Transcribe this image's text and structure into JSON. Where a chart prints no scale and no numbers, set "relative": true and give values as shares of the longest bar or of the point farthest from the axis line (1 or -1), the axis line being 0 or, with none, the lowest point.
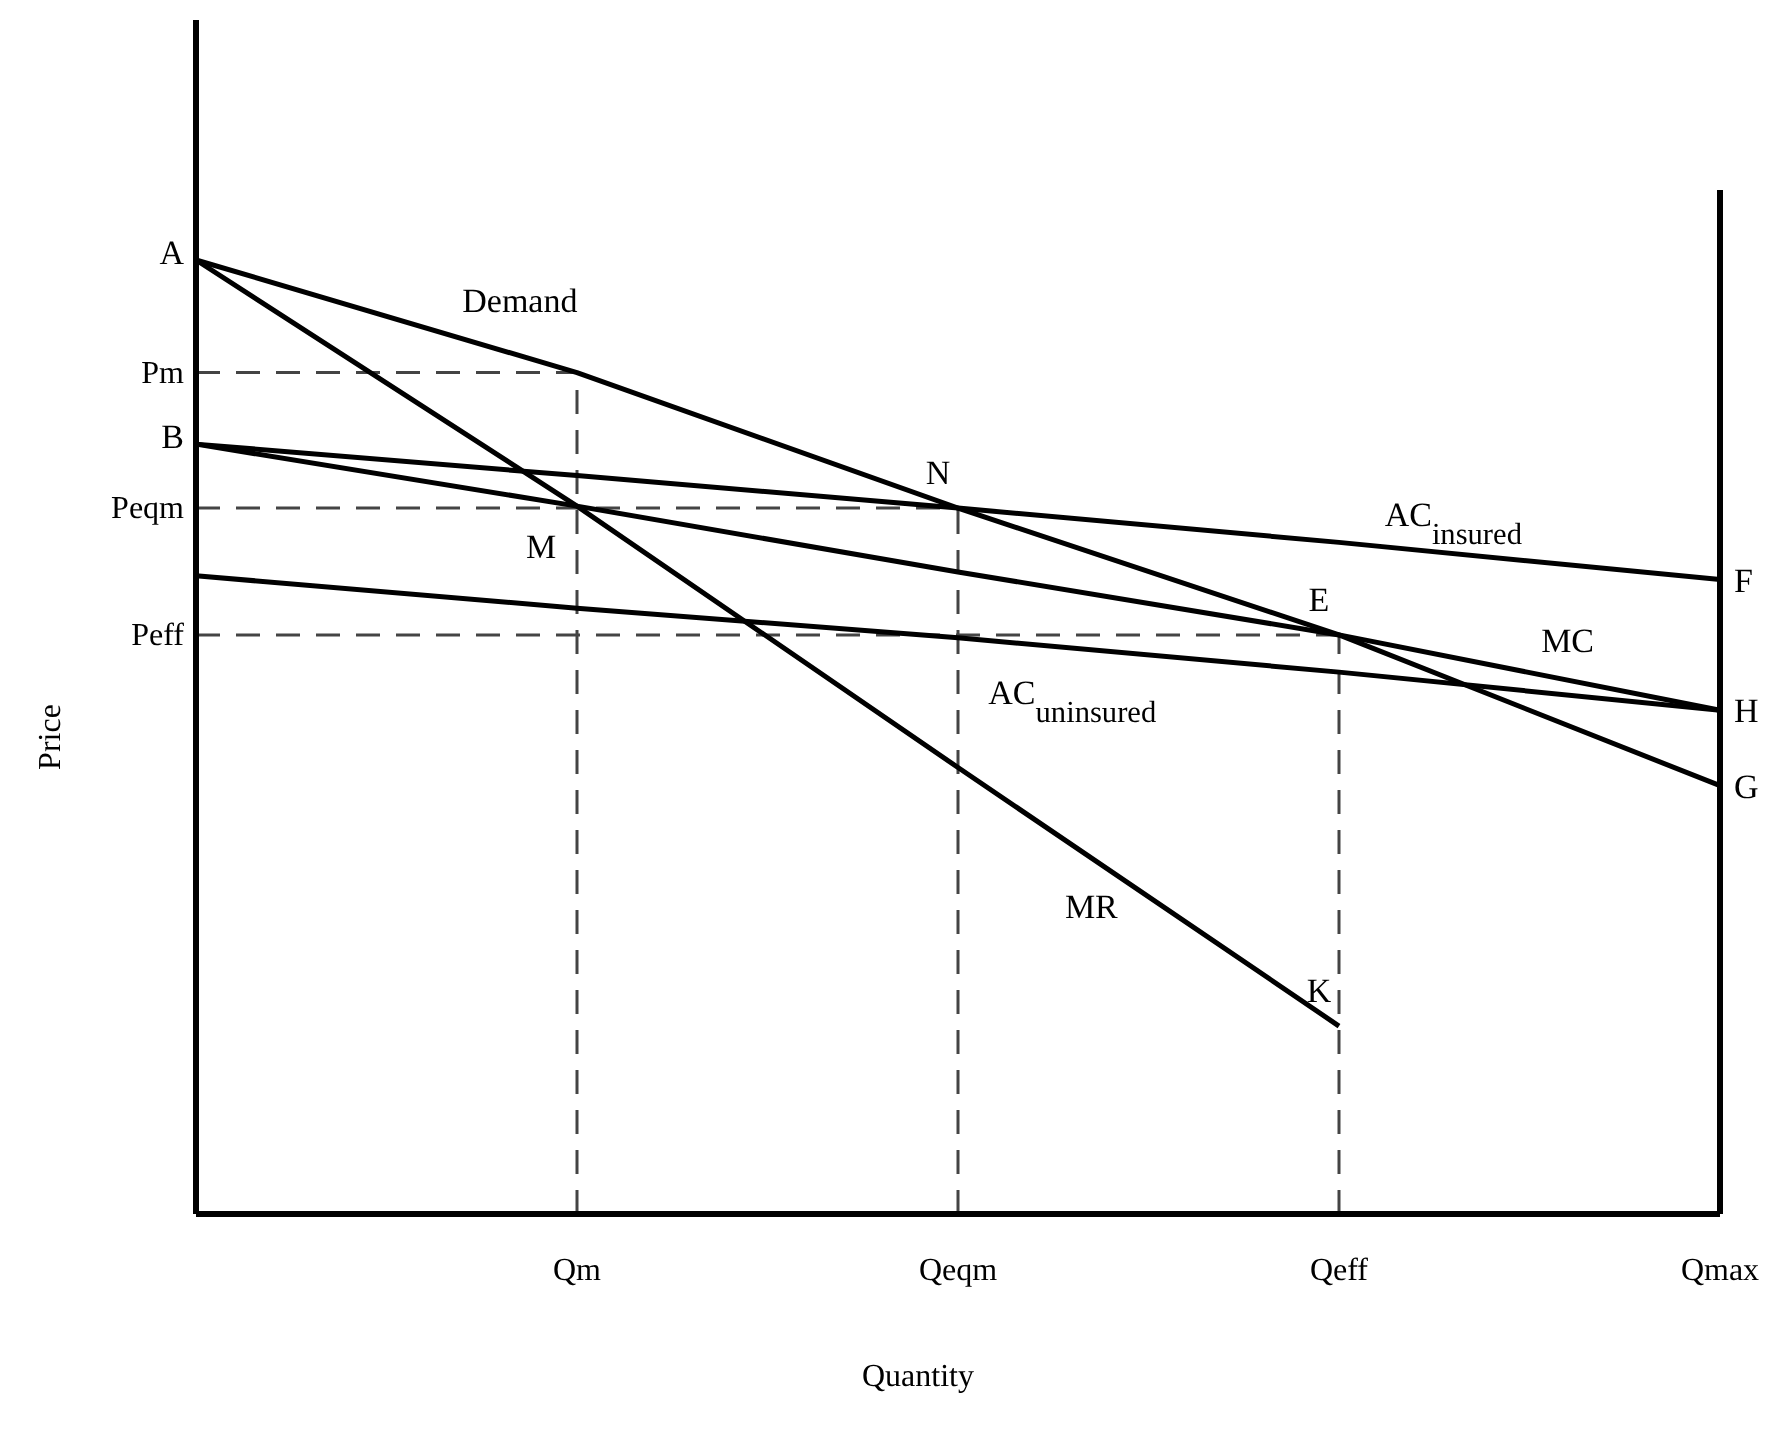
{
  "chart_data": {
    "type": "line",
    "relative": true,
    "xlabel": "Quantity",
    "ylabel": "Price",
    "categories": [
      null,
      "Qm",
      "Qeqm",
      "Qeff",
      "Qmax"
    ],
    "series": [
      {
        "name": "Demand",
        "color": "#000000",
        "values": [
          1,
          0.882,
          0.74,
          0.607,
          0.449
        ]
      },
      {
        "name": "MR",
        "color": "#000000",
        "values": [
          1,
          0.742,
          0.468,
          0.197,
          null
        ]
      },
      {
        "name": "AC$_{insured}$",
        "color": "#000000",
        "values": [
          0.807,
          0.774,
          0.74,
          0.704,
          0.665
        ]
      },
      {
        "name": "MC",
        "color": "#000000",
        "values": [
          0.807,
          0.742,
          0.673,
          0.607,
          0.528
        ]
      },
      {
        "name": "AC$_{uninsured}$",
        "color": "#000000",
        "values": [
          0.669,
          0.635,
          0.604,
          0.568,
          0.528
        ]
      }
    ],
    "ref_lines": [
      {
        "axis": "y",
        "value": 0.882,
        "label": "Pm",
        "color": "#444444",
        "line_style": "dashed"
      },
      {
        "axis": "y",
        "value": 0.74,
        "label": "Peqm",
        "color": "#444444",
        "line_style": "dashed"
      },
      {
        "axis": "y",
        "value": 0.607,
        "label": "Peff",
        "color": "#444444",
        "line_style": "dashed"
      },
      {
        "axis": "x",
        "value": "Qm",
        "color": "#444444",
        "line_style": "dashed"
      },
      {
        "axis": "x",
        "value": "Qeqm",
        "color": "#444444",
        "line_style": "dashed"
      },
      {
        "axis": "x",
        "value": "Qeff",
        "color": "#444444",
        "line_style": "dashed"
      }
    ],
    "annotations": [
      "A",
      "B",
      {
        "text": "N",
        "x": "Qeqm",
        "y": 0.74
      },
      {
        "text": "M",
        "x": "Qm",
        "y": 0.742
      },
      {
        "text": "E",
        "x": "Qeff",
        "y": 0.607
      },
      {
        "text": "K",
        "x": "Qeff",
        "y": 0.197
      },
      {
        "text": "F",
        "x": "Qmax",
        "y": 0.665
      },
      {
        "text": "H",
        "x": "Qmax",
        "y": 0.528
      },
      {
        "text": "G",
        "x": "Qmax",
        "y": 0.449
      }
    ],
    "legend": false,
    "line_style": "solid",
    "marker": "none"
  }
}
